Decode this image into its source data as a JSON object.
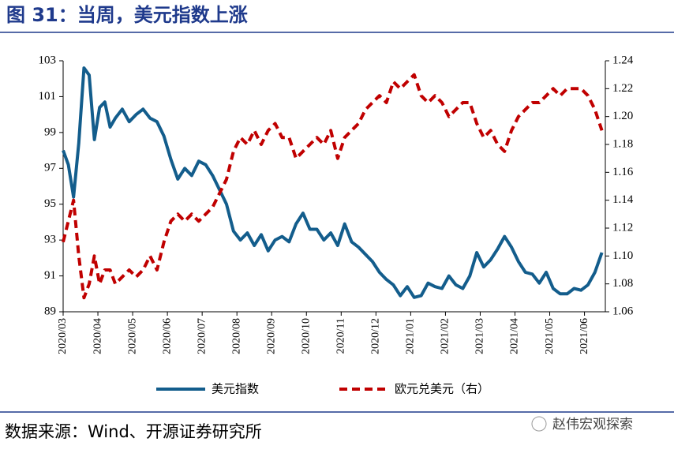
{
  "title": "图 31：当周，美元指数上涨",
  "source": "数据来源：Wind、开源证券研究所",
  "watermark": "赵伟宏观探索",
  "chart_data": {
    "type": "line",
    "x": [
      0,
      0.15,
      0.3,
      0.45,
      0.6,
      0.75,
      0.9,
      1.05,
      1.2,
      1.35,
      1.5,
      1.7,
      1.9,
      2.1,
      2.3,
      2.5,
      2.7,
      2.9,
      3.1,
      3.3,
      3.5,
      3.7,
      3.9,
      4.1,
      4.3,
      4.5,
      4.7,
      4.9,
      5.1,
      5.3,
      5.5,
      5.7,
      5.9,
      6.1,
      6.3,
      6.5,
      6.7,
      6.9,
      7.1,
      7.3,
      7.5,
      7.7,
      7.9,
      8.1,
      8.3,
      8.5,
      8.7,
      8.9,
      9.1,
      9.3,
      9.5,
      9.7,
      9.9,
      10.1,
      10.3,
      10.5,
      10.7,
      10.9,
      11.1,
      11.3,
      11.5,
      11.7,
      11.9,
      12.1,
      12.3,
      12.5,
      12.7,
      12.9,
      13.1,
      13.3,
      13.5,
      13.7,
      13.9,
      14.1,
      14.3,
      14.5,
      14.7,
      14.9,
      15.1,
      15.3,
      15.5
    ],
    "series": [
      {
        "name": "美元指数",
        "color": "#135d8c",
        "dash": false,
        "axis": "y",
        "values": [
          98.0,
          97.2,
          95.4,
          98.4,
          102.6,
          102.2,
          98.6,
          100.4,
          100.7,
          99.3,
          99.8,
          100.3,
          99.6,
          100.0,
          100.3,
          99.8,
          99.6,
          98.8,
          97.5,
          96.4,
          97.0,
          96.6,
          97.4,
          97.2,
          96.6,
          95.8,
          95.0,
          93.5,
          93.0,
          93.4,
          92.7,
          93.3,
          92.4,
          93.0,
          93.2,
          92.9,
          93.9,
          94.5,
          93.6,
          93.6,
          93.0,
          93.4,
          92.7,
          93.9,
          92.9,
          92.6,
          92.2,
          91.8,
          91.2,
          90.8,
          90.5,
          89.9,
          90.4,
          89.8,
          89.9,
          90.6,
          90.4,
          90.3,
          91.0,
          90.5,
          90.3,
          91.0,
          92.3,
          91.5,
          91.9,
          92.5,
          93.2,
          92.6,
          91.8,
          91.2,
          91.1,
          90.6,
          91.2,
          90.3,
          90.0,
          90.0,
          90.3,
          90.2,
          90.5,
          91.2,
          92.3
        ]
      },
      {
        "name": "欧元兑美元（右）",
        "color": "#c00000",
        "dash": true,
        "axis": "y2",
        "values": [
          1.11,
          1.125,
          1.14,
          1.1,
          1.07,
          1.08,
          1.1,
          1.08,
          1.09,
          1.09,
          1.08,
          1.085,
          1.09,
          1.085,
          1.09,
          1.1,
          1.09,
          1.11,
          1.125,
          1.13,
          1.125,
          1.13,
          1.125,
          1.13,
          1.135,
          1.145,
          1.155,
          1.175,
          1.185,
          1.18,
          1.19,
          1.18,
          1.19,
          1.195,
          1.185,
          1.185,
          1.17,
          1.175,
          1.18,
          1.185,
          1.18,
          1.19,
          1.17,
          1.185,
          1.19,
          1.195,
          1.205,
          1.21,
          1.215,
          1.21,
          1.225,
          1.22,
          1.225,
          1.23,
          1.215,
          1.21,
          1.215,
          1.21,
          1.2,
          1.205,
          1.21,
          1.21,
          1.195,
          1.185,
          1.19,
          1.18,
          1.175,
          1.19,
          1.2,
          1.205,
          1.21,
          1.21,
          1.215,
          1.22,
          1.215,
          1.22,
          1.22,
          1.22,
          1.215,
          1.205,
          1.19
        ]
      }
    ],
    "xlim": [
      0,
      15.6
    ],
    "xticks": [
      {
        "value": 0,
        "label": "2020/03"
      },
      {
        "value": 1,
        "label": "2020/04"
      },
      {
        "value": 2,
        "label": "2020/05"
      },
      {
        "value": 3,
        "label": "2020/06"
      },
      {
        "value": 4,
        "label": "2020/07"
      },
      {
        "value": 5,
        "label": "2020/08"
      },
      {
        "value": 6,
        "label": "2020/09"
      },
      {
        "value": 7,
        "label": "2020/10"
      },
      {
        "value": 8,
        "label": "2020/11"
      },
      {
        "value": 9,
        "label": "2020/12"
      },
      {
        "value": 10,
        "label": "2021/01"
      },
      {
        "value": 11,
        "label": "2021/02"
      },
      {
        "value": 12,
        "label": "2021/03"
      },
      {
        "value": 13,
        "label": "2021/04"
      },
      {
        "value": 14,
        "label": "2021/05"
      },
      {
        "value": 15,
        "label": "2021/06"
      }
    ],
    "ylim": [
      89,
      103
    ],
    "yticks": [
      89,
      91,
      93,
      95,
      97,
      99,
      101,
      103
    ],
    "y2lim": [
      1.06,
      1.24
    ],
    "y2ticks": [
      1.06,
      1.08,
      {
        "value": 1.1,
        "label": "1.10"
      },
      1.12,
      1.14,
      1.16,
      1.18,
      {
        "value": 1.2,
        "label": "1.20"
      },
      1.22,
      1.24
    ],
    "legend": "bottom"
  }
}
